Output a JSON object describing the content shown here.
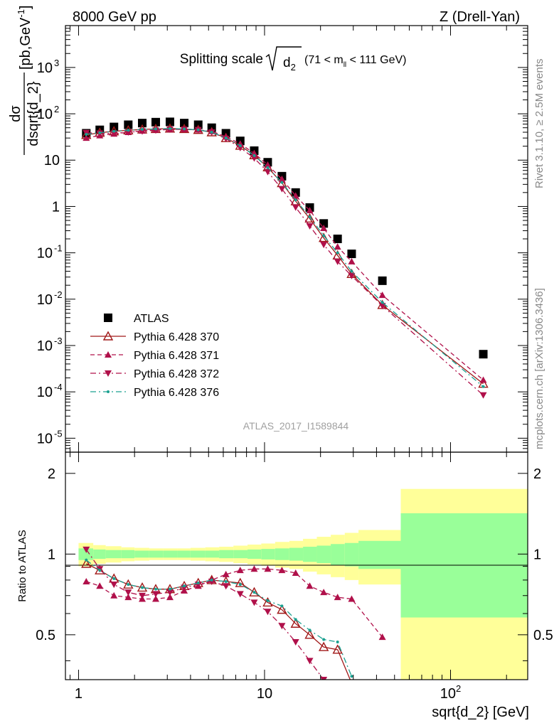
{
  "header": {
    "left": "8000 GeV pp",
    "right": "Z (Drell-Yan)"
  },
  "side_labels": {
    "top": "Rivet 3.1.10, ≥ 2.5M events",
    "bottom": "mcplots.cern.ch [arXiv:1306.3436]"
  },
  "chart_data": [
    {
      "type": "scatter",
      "panel": "main",
      "title": {
        "main": "Splitting scale",
        "sqrt_arg": "d",
        "sqrt_sub": "2",
        "cut_pre": "(71 < m",
        "cut_sub": "ll",
        "cut_post": " < 111 GeV)"
      },
      "ylabel": {
        "num": "dσ",
        "den": "dsqrt{d_2}",
        "unit_pre": "[pb,GeV",
        "unit_sup": "-1",
        "unit_post": "]"
      },
      "xlabel": "sqrt{d_2} [GeV]",
      "watermark": "ATLAS_2017_I1589844",
      "xscale": "log",
      "yscale": "log",
      "xlim": [
        0.85,
        260
      ],
      "ylim": [
        5e-06,
        8000
      ],
      "yticks": [
        {
          "v": 1e-05,
          "b": "10",
          "e": "-5"
        },
        {
          "v": 0.0001,
          "b": "10",
          "e": "-4"
        },
        {
          "v": 0.001,
          "b": "10",
          "e": "-3"
        },
        {
          "v": 0.01,
          "b": "10",
          "e": "-2"
        },
        {
          "v": 0.1,
          "b": "10",
          "e": "-1"
        },
        {
          "v": 1,
          "b": "1",
          "e": ""
        },
        {
          "v": 10,
          "b": "10",
          "e": ""
        },
        {
          "v": 100,
          "b": "10",
          "e": "2"
        },
        {
          "v": 1000,
          "b": "10",
          "e": "3"
        }
      ],
      "x": [
        1.1,
        1.3,
        1.55,
        1.85,
        2.2,
        2.6,
        3.1,
        3.7,
        4.4,
        5.2,
        6.2,
        7.4,
        8.8,
        10.4,
        12.4,
        14.7,
        17.5,
        20.8,
        24.7,
        29.4,
        43,
        150
      ],
      "series": [
        {
          "name": "ATLAS",
          "marker": "square",
          "color": "#000000",
          "values": [
            38,
            45,
            52,
            58,
            63,
            66,
            67,
            63,
            58,
            50,
            38,
            26,
            16,
            9,
            4.5,
            2.0,
            0.95,
            0.43,
            0.2,
            0.095,
            0.025,
            0.00065
          ]
        },
        {
          "name": "Pythia 6.428 370",
          "marker": "triangle-open",
          "line": "solid",
          "color": "#a01818",
          "values": [
            35,
            39,
            42,
            44,
            46,
            47,
            48,
            47,
            45,
            40,
            30,
            20.5,
            12.8,
            7.0,
            3.2,
            1.3,
            0.55,
            0.21,
            0.088,
            0.035,
            0.0075,
            0.00015
          ]
        },
        {
          "name": "Pythia 6.428 371",
          "marker": "triangle-up",
          "line": "dashed",
          "color": "#b0104a",
          "values": [
            30,
            34,
            37,
            40,
            43,
            45,
            46,
            46,
            45,
            42,
            32,
            22.5,
            14,
            7.9,
            3.9,
            1.7,
            0.82,
            0.34,
            0.135,
            0.065,
            0.0122,
            0.00018
          ]
        },
        {
          "name": "Pythia 6.428 372",
          "marker": "triangle-down",
          "line": "dashdot",
          "color": "#b0104a",
          "values": [
            39,
            38,
            38,
            40,
            42,
            44,
            46,
            46,
            45,
            40,
            29,
            18.5,
            11,
            5.6,
            2.4,
            0.96,
            0.38,
            0.15,
            0.065,
            0.032,
            0.0072,
            8.5e-05
          ]
        },
        {
          "name": "Pythia 6.428 376",
          "marker": "dot",
          "line": "dashdot",
          "color": "#1aa090",
          "values": [
            36,
            39,
            42,
            44,
            46,
            47,
            48,
            47,
            45,
            40,
            30,
            20.5,
            12.6,
            6.9,
            3.3,
            1.38,
            0.6,
            0.235,
            0.1,
            0.04,
            0.0085,
            0.00013
          ]
        }
      ]
    },
    {
      "type": "line",
      "panel": "ratio",
      "ylabel": "Ratio to ATLAS",
      "xscale": "log",
      "xlim": [
        0.85,
        260
      ],
      "ylim": [
        0.34,
        2.4
      ],
      "xticks": [
        {
          "v": 1,
          "b": "1",
          "e": ""
        },
        {
          "v": 10,
          "b": "10",
          "e": ""
        },
        {
          "v": 100,
          "b": "10",
          "e": "2"
        }
      ],
      "yticks": [
        0.5,
        1,
        2
      ],
      "bands": {
        "edges": [
          1,
          1.2,
          1.4,
          1.7,
          2.0,
          2.4,
          2.85,
          3.4,
          4.0,
          4.8,
          5.7,
          6.8,
          8.1,
          9.6,
          11.4,
          13.6,
          16.1,
          19.1,
          22.7,
          27.0,
          32.0,
          54.0,
          260
        ],
        "green": [
          0.05,
          0.04,
          0.035,
          0.035,
          0.03,
          0.03,
          0.03,
          0.03,
          0.03,
          0.03,
          0.035,
          0.035,
          0.04,
          0.045,
          0.05,
          0.055,
          0.065,
          0.075,
          0.09,
          0.1,
          0.12,
          0.42
        ],
        "yellow": [
          0.1,
          0.08,
          0.07,
          0.06,
          0.055,
          0.05,
          0.05,
          0.05,
          0.055,
          0.06,
          0.065,
          0.075,
          0.085,
          0.095,
          0.11,
          0.12,
          0.14,
          0.16,
          0.18,
          0.2,
          0.23,
          0.75
        ]
      },
      "series": [
        {
          "name": "Pythia 6.428 370",
          "values": [
            0.92,
            0.87,
            0.81,
            0.77,
            0.75,
            0.74,
            0.74,
            0.76,
            0.78,
            0.8,
            0.79,
            0.78,
            0.72,
            0.66,
            0.62,
            0.55,
            0.5,
            0.45,
            0.44,
            0.33,
            null,
            null
          ]
        },
        {
          "name": "Pythia 6.428 371",
          "values": [
            0.79,
            0.76,
            0.7,
            0.69,
            0.68,
            0.68,
            0.69,
            0.73,
            0.76,
            0.8,
            0.84,
            0.87,
            0.88,
            0.88,
            0.87,
            0.85,
            0.76,
            0.72,
            0.69,
            0.68,
            0.49,
            null
          ]
        },
        {
          "name": "Pythia 6.428 372",
          "values": [
            1.04,
            0.88,
            0.77,
            0.72,
            0.7,
            0.71,
            0.72,
            0.75,
            0.77,
            0.79,
            0.76,
            0.71,
            0.66,
            0.61,
            0.54,
            0.47,
            0.4,
            0.34,
            0.31,
            0.28,
            null,
            null
          ]
        },
        {
          "name": "Pythia 6.428 376",
          "values": [
            0.95,
            0.87,
            0.81,
            0.77,
            0.75,
            0.74,
            0.74,
            0.76,
            0.78,
            0.8,
            0.79,
            0.77,
            0.72,
            0.67,
            0.64,
            0.57,
            0.52,
            0.48,
            0.47,
            0.35,
            null,
            null
          ]
        }
      ]
    }
  ]
}
